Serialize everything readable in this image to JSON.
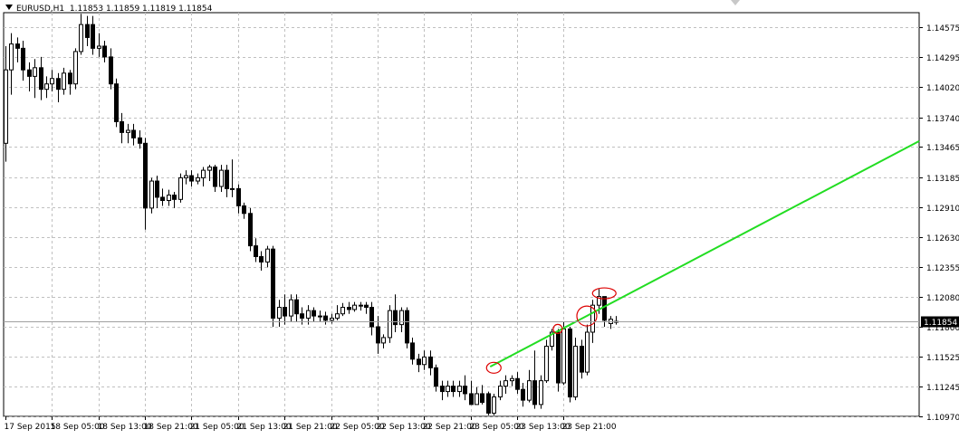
{
  "header": {
    "symbol_timeframe": "EURUSD,H1",
    "open": "1.11853",
    "high": "1.11859",
    "low": "1.11819",
    "close": "1.11854"
  },
  "colors": {
    "background": "#ffffff",
    "grid": "#c0c0c0",
    "candle": "#000000",
    "trendline": "#22dd22",
    "marker": "#dd0000",
    "price_tag_bg": "#000000",
    "price_tag_text": "#ffffff"
  },
  "chart_data": {
    "type": "candlestick",
    "symbol": "EURUSD",
    "timeframe": "H1",
    "current_price": "1.11854",
    "ylim": [
      1.1097,
      1.1471
    ],
    "grid": true,
    "y_ticks": [
      "1.14575",
      "1.14295",
      "1.14020",
      "1.13740",
      "1.13465",
      "1.13185",
      "1.12910",
      "1.12630",
      "1.12355",
      "1.12080",
      "1.11800",
      "1.11525",
      "1.11245",
      "1.10970"
    ],
    "x_ticks": [
      "17 Sep 2015",
      "18 Sep 05:00",
      "18 Sep 13:00",
      "18 Sep 21:00",
      "21 Sep 05:00",
      "21 Sep 13:00",
      "21 Sep 21:00",
      "22 Sep 05:00",
      "22 Sep 13:00",
      "22 Sep 21:00",
      "23 Sep 05:00",
      "23 Sep 13:00",
      "23 Sep 21:00"
    ],
    "candles": [
      [
        1.135,
        1.1418,
        1.1333,
        1.144
      ],
      [
        1.1418,
        1.1442,
        1.1395,
        1.1452
      ],
      [
        1.1442,
        1.1438,
        1.1425,
        1.1448
      ],
      [
        1.1438,
        1.1418,
        1.1408,
        1.1445
      ],
      [
        1.1418,
        1.1412,
        1.1398,
        1.1425
      ],
      [
        1.1412,
        1.142,
        1.1392,
        1.1428
      ],
      [
        1.142,
        1.14,
        1.139,
        1.143
      ],
      [
        1.14,
        1.1405,
        1.1392,
        1.1412
      ],
      [
        1.1405,
        1.141,
        1.1398,
        1.1418
      ],
      [
        1.141,
        1.14,
        1.1388,
        1.1415
      ],
      [
        1.14,
        1.1415,
        1.1395,
        1.142
      ],
      [
        1.1415,
        1.1405,
        1.1395,
        1.1418
      ],
      [
        1.1405,
        1.1435,
        1.14,
        1.1438
      ],
      [
        1.1435,
        1.146,
        1.1432,
        1.147
      ],
      [
        1.146,
        1.1448,
        1.144,
        1.1468
      ],
      [
        1.146,
        1.1438,
        1.1432,
        1.1468
      ],
      [
        1.1438,
        1.144,
        1.143,
        1.1452
      ],
      [
        1.144,
        1.143,
        1.1425,
        1.1445
      ],
      [
        1.143,
        1.1405,
        1.14,
        1.1438
      ],
      [
        1.1405,
        1.137,
        1.1365,
        1.141
      ],
      [
        1.137,
        1.136,
        1.135,
        1.1378
      ],
      [
        1.136,
        1.1362,
        1.135,
        1.1368
      ],
      [
        1.1362,
        1.1355,
        1.1348,
        1.1368
      ],
      [
        1.1355,
        1.135,
        1.1345,
        1.1362
      ],
      [
        1.135,
        1.129,
        1.127,
        1.1355
      ],
      [
        1.129,
        1.1315,
        1.1285,
        1.1318
      ],
      [
        1.1315,
        1.13,
        1.129,
        1.132
      ],
      [
        1.13,
        1.1297,
        1.1292,
        1.1308
      ],
      [
        1.1297,
        1.1302,
        1.1292,
        1.1307
      ],
      [
        1.1302,
        1.1298,
        1.129,
        1.1305
      ],
      [
        1.1298,
        1.1318,
        1.1295,
        1.1322
      ],
      [
        1.1318,
        1.132,
        1.1312,
        1.1325
      ],
      [
        1.132,
        1.1315,
        1.131,
        1.1325
      ],
      [
        1.1315,
        1.1318,
        1.1312,
        1.1322
      ],
      [
        1.1318,
        1.1325,
        1.131,
        1.1328
      ],
      [
        1.1325,
        1.1328,
        1.1315,
        1.133
      ],
      [
        1.1328,
        1.131,
        1.1305,
        1.133
      ],
      [
        1.131,
        1.1325,
        1.1305,
        1.133
      ],
      [
        1.1325,
        1.1308,
        1.13,
        1.133
      ],
      [
        1.1308,
        1.1308,
        1.13,
        1.1335
      ],
      [
        1.1308,
        1.1292,
        1.1285,
        1.1312
      ],
      [
        1.1292,
        1.1285,
        1.128,
        1.1295
      ],
      [
        1.1285,
        1.1255,
        1.125,
        1.129
      ],
      [
        1.1255,
        1.1245,
        1.124,
        1.1262
      ],
      [
        1.1245,
        1.124,
        1.1232,
        1.125
      ],
      [
        1.124,
        1.1252,
        1.1235,
        1.1255
      ],
      [
        1.1252,
        1.1188,
        1.118,
        1.1255
      ],
      [
        1.1188,
        1.1198,
        1.118,
        1.1205
      ],
      [
        1.1198,
        1.119,
        1.1182,
        1.121
      ],
      [
        1.119,
        1.1205,
        1.1185,
        1.121
      ],
      [
        1.1205,
        1.1192,
        1.1185,
        1.121
      ],
      [
        1.1192,
        1.1188,
        1.1182,
        1.1198
      ],
      [
        1.1188,
        1.1195,
        1.1182,
        1.12
      ],
      [
        1.1195,
        1.119,
        1.1185,
        1.1198
      ],
      [
        1.119,
        1.119,
        1.1185,
        1.1195
      ],
      [
        1.119,
        1.1186,
        1.1182,
        1.1194
      ],
      [
        1.1186,
        1.1188,
        1.1183,
        1.1192
      ],
      [
        1.1188,
        1.1192,
        1.1186,
        1.12
      ],
      [
        1.1192,
        1.1198,
        1.119,
        1.1202
      ],
      [
        1.1198,
        1.1196,
        1.1192,
        1.1203
      ],
      [
        1.1196,
        1.12,
        1.1194,
        1.1203
      ],
      [
        1.12,
        1.12,
        1.1195,
        1.1203
      ],
      [
        1.12,
        1.1198,
        1.1192,
        1.1203
      ],
      [
        1.1198,
        1.118,
        1.1172,
        1.1203
      ],
      [
        1.118,
        1.1165,
        1.1155,
        1.119
      ],
      [
        1.1165,
        1.117,
        1.116,
        1.1173
      ],
      [
        1.117,
        1.1195,
        1.1165,
        1.12
      ],
      [
        1.1195,
        1.1182,
        1.1175,
        1.121
      ],
      [
        1.1182,
        1.1195,
        1.1175,
        1.1198
      ],
      [
        1.1195,
        1.1165,
        1.116,
        1.1198
      ],
      [
        1.1165,
        1.115,
        1.1145,
        1.117
      ],
      [
        1.115,
        1.1145,
        1.1138,
        1.1155
      ],
      [
        1.1145,
        1.1152,
        1.114,
        1.1158
      ],
      [
        1.1152,
        1.1142,
        1.1135,
        1.1158
      ],
      [
        1.1142,
        1.1125,
        1.112,
        1.1145
      ],
      [
        1.1125,
        1.112,
        1.1112,
        1.113
      ],
      [
        1.112,
        1.1125,
        1.1115,
        1.113
      ],
      [
        1.1125,
        1.112,
        1.1115,
        1.113
      ],
      [
        1.112,
        1.1125,
        1.1115,
        1.113
      ],
      [
        1.1125,
        1.1118,
        1.1112,
        1.1135
      ],
      [
        1.1118,
        1.1108,
        1.1108,
        1.113
      ],
      [
        1.1108,
        1.1118,
        1.1108,
        1.1124
      ],
      [
        1.1118,
        1.111,
        1.1108,
        1.1126
      ],
      [
        1.1118,
        1.11,
        1.1098,
        1.112
      ],
      [
        1.11,
        1.1115,
        1.1098,
        1.1118
      ],
      [
        1.1115,
        1.1125,
        1.1112,
        1.113
      ],
      [
        1.1125,
        1.113,
        1.1118,
        1.1135
      ],
      [
        1.113,
        1.1132,
        1.1125,
        1.1135
      ],
      [
        1.1132,
        1.1122,
        1.1118,
        1.1138
      ],
      [
        1.1122,
        1.1112,
        1.1106,
        1.1128
      ],
      [
        1.1112,
        1.113,
        1.111,
        1.114
      ],
      [
        1.113,
        1.1108,
        1.1104,
        1.1158
      ],
      [
        1.1108,
        1.113,
        1.1104,
        1.1135
      ],
      [
        1.113,
        1.1162,
        1.1128,
        1.1168
      ],
      [
        1.1162,
        1.1175,
        1.1158,
        1.1178
      ],
      [
        1.1175,
        1.1128,
        1.112,
        1.1178
      ],
      [
        1.1128,
        1.1178,
        1.1126,
        1.1185
      ],
      [
        1.1178,
        1.1115,
        1.111,
        1.118
      ],
      [
        1.1115,
        1.1162,
        1.1112,
        1.117
      ],
      [
        1.1162,
        1.1138,
        1.1132,
        1.1168
      ],
      [
        1.1138,
        1.1175,
        1.1135,
        1.1182
      ],
      [
        1.1175,
        1.12,
        1.1165,
        1.1205
      ],
      [
        1.12,
        1.1208,
        1.1192,
        1.1215
      ],
      [
        1.1208,
        1.1186,
        1.118,
        1.1208
      ],
      [
        1.1183,
        1.1187,
        1.1178,
        1.119
      ],
      [
        1.1185,
        1.1185,
        1.1182,
        1.119
      ]
    ],
    "trendline": {
      "from": [
        "23 Sep 03:00",
        1.1143
      ],
      "to_right_edge": 1.1352
    },
    "circled_points": [
      {
        "index": 84,
        "price": 1.1142
      },
      {
        "index": 95,
        "price": 1.1178
      },
      {
        "index": 100,
        "price": 1.119
      },
      {
        "index": 103,
        "price": 1.1211
      }
    ]
  }
}
